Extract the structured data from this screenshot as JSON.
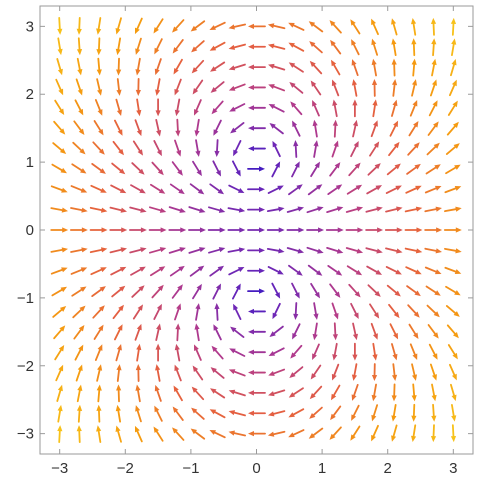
{
  "chart_data": {
    "type": "vector-field",
    "title": "",
    "xlabel": "",
    "ylabel": "",
    "xlim": [
      -3.3,
      3.3
    ],
    "ylim": [
      -3.3,
      3.3
    ],
    "x_ticks": [
      -3,
      -2,
      -1,
      0,
      1,
      2,
      3
    ],
    "y_ticks": [
      -3,
      -2,
      -1,
      0,
      1,
      2,
      3
    ],
    "x_tick_labels": [
      "−3",
      "−2",
      "−1",
      "0",
      "1",
      "2",
      "3"
    ],
    "y_tick_labels": [
      "−3",
      "−2",
      "−1",
      "0",
      "1",
      "2",
      "3"
    ],
    "grid": false,
    "frame": true,
    "sample_range": [
      -3,
      3
    ],
    "sample_count": 21,
    "field": {
      "u": "x*x - y*y + 1",
      "v": "2*x*y"
    },
    "color_scale": {
      "by": "field magnitude",
      "stops": [
        "#1f12c9",
        "#6a26b8",
        "#b23a8c",
        "#e56040",
        "#f59a10",
        "#f7c21a"
      ]
    }
  }
}
